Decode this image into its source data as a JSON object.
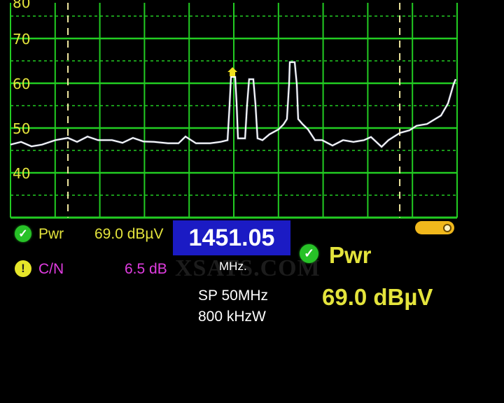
{
  "chart_data": {
    "type": "line",
    "title": "",
    "xlabel": "",
    "ylabel": "",
    "y_unit": "dBµV",
    "ylim": [
      30,
      78.5
    ],
    "xlim_mhz": [
      1426.05,
      1476.05
    ],
    "y_ticks": [
      "80",
      "70",
      "60",
      "50",
      "40"
    ],
    "y_tick_values": [
      80,
      70,
      60,
      50,
      40
    ],
    "grid": true,
    "grid_color": "#22cc22",
    "trace_color": "#ffffff",
    "x_divisions": 10,
    "marker_mhz": 1450.9,
    "marker_level": 62.5,
    "marker_color": "#f0e020",
    "dashed_markers_mhz": [
      1432.48,
      1469.63
    ],
    "series": [
      {
        "x": [
          1426.05,
          1427.23,
          1428.4,
          1429.58,
          1431.07,
          1432.48,
          1433.5,
          1434.67,
          1435.85,
          1437.41,
          1438.59,
          1439.76,
          1440.94,
          1442.12,
          1443.68,
          1444.86,
          1445.64,
          1446.82,
          1448.39,
          1449.56,
          1450.35,
          1450.58,
          1450.74,
          1451.21,
          1451.37,
          1451.52,
          1452.31,
          1452.54,
          1452.77,
          1453.24,
          1453.48,
          1453.71,
          1454.26,
          1455.04,
          1456.06,
          1456.61,
          1457.0,
          1457.24,
          1457.32,
          1457.87,
          1458.1,
          1458.26,
          1458.73,
          1459.36,
          1460.14,
          1460.93,
          1462.1,
          1463.28,
          1464.45,
          1465.63,
          1466.41,
          1467.59,
          1468.37,
          1469.63,
          1470.72,
          1471.51,
          1472.68,
          1474.25,
          1475.03,
          1475.66,
          1475.89
        ],
        "y": [
          46.3,
          46.9,
          45.9,
          46.3,
          47.3,
          47.8,
          46.9,
          48.1,
          47.3,
          47.3,
          46.7,
          47.8,
          47.0,
          46.9,
          46.6,
          46.6,
          48.1,
          46.6,
          46.6,
          46.9,
          47.3,
          55.2,
          61.4,
          61.4,
          55.2,
          47.7,
          47.7,
          55.2,
          60.9,
          60.9,
          55.2,
          47.7,
          47.3,
          48.6,
          49.7,
          50.8,
          52.0,
          59.8,
          64.7,
          64.7,
          59.8,
          52.0,
          50.9,
          49.7,
          47.3,
          47.3,
          46.1,
          47.3,
          46.9,
          47.3,
          48.0,
          45.8,
          47.3,
          48.9,
          49.5,
          50.5,
          50.9,
          52.8,
          55.5,
          59.8,
          60.9
        ]
      }
    ]
  },
  "left_panel": {
    "pwr_label": "Pwr",
    "pwr_value": "69.0 dBµV",
    "pwr_status": "ok",
    "cn_label": "C/N",
    "cn_value": "6.5 dB",
    "cn_status": "warning",
    "ok_icon": "check-icon",
    "warn_icon": "exclamation-icon",
    "warn_glyph": "!",
    "ok_glyph": "✓"
  },
  "center_panel": {
    "frequency": "1451.05",
    "unit": "MHz.",
    "span": "SP 50MHz",
    "rbw": "800 kHzW"
  },
  "right_panel": {
    "pwr_label": "Pwr",
    "pwr_value": "69.0 dBµV"
  },
  "battery_icon": "battery-icon",
  "watermark": "XSATS.COM",
  "colors": {
    "yellow": "#e4e43c",
    "magenta": "#e03ce0",
    "blue_box": "#1b1bc4",
    "green": "#27c227"
  }
}
